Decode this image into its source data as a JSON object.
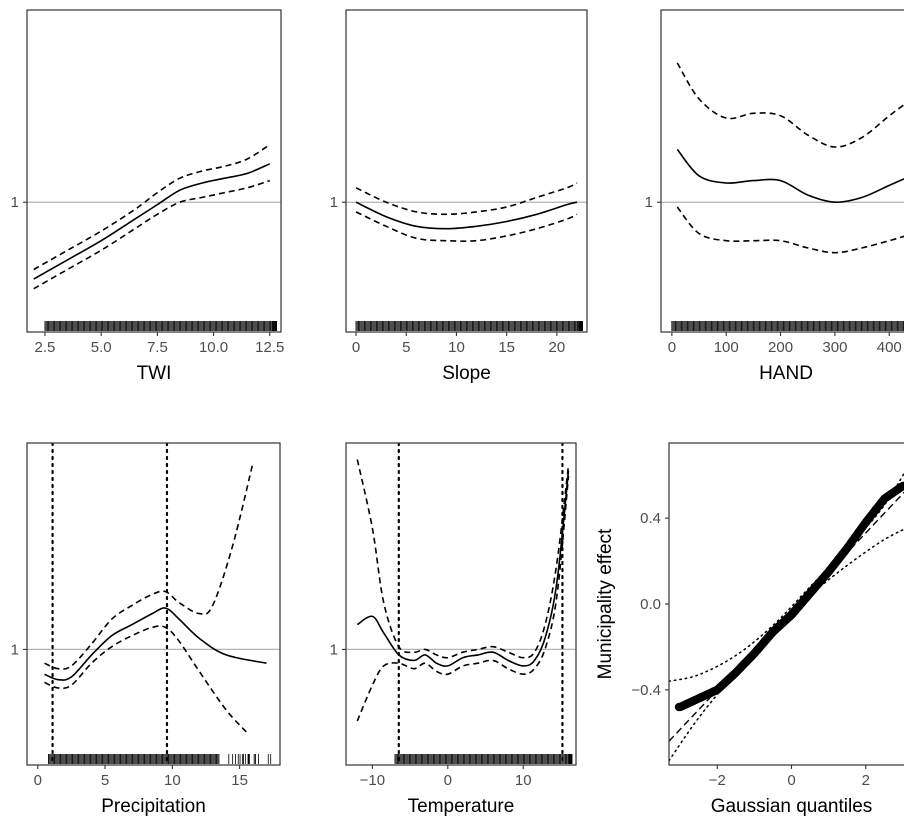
{
  "chart_data": [
    {
      "type": "line",
      "xlabel": "TWI",
      "xlim": [
        1.7,
        13.0
      ],
      "ylim": [
        0.46,
        1.8
      ],
      "xticks": [
        2.5,
        5.0,
        7.5,
        10.0,
        12.5
      ],
      "xticklabels": [
        "2.5",
        "5.0",
        "7.5",
        "10.0",
        "12.5"
      ],
      "yticks": [
        1
      ],
      "yticklabels": [
        "1"
      ],
      "hline": 1,
      "rug": [
        2.5,
        12.6
      ],
      "series": [
        {
          "style": "solid",
          "x": [
            2.0,
            3.5,
            5.0,
            6.5,
            7.5,
            8.5,
            9.5,
            10.5,
            11.5,
            12.5
          ],
          "y": [
            0.68,
            0.76,
            0.84,
            0.93,
            0.99,
            1.05,
            1.08,
            1.1,
            1.12,
            1.16
          ]
        },
        {
          "style": "dashed",
          "x": [
            2.0,
            3.5,
            5.0,
            6.5,
            7.5,
            8.5,
            9.5,
            10.5,
            11.5,
            12.5
          ],
          "y": [
            0.72,
            0.8,
            0.88,
            0.97,
            1.04,
            1.1,
            1.13,
            1.15,
            1.18,
            1.24
          ]
        },
        {
          "style": "dashed",
          "x": [
            2.0,
            3.5,
            5.0,
            6.5,
            7.5,
            8.5,
            9.5,
            10.5,
            11.5,
            12.5
          ],
          "y": [
            0.64,
            0.72,
            0.8,
            0.89,
            0.95,
            1.0,
            1.02,
            1.04,
            1.06,
            1.09
          ]
        }
      ]
    },
    {
      "type": "line",
      "xlabel": "Slope",
      "xlim": [
        -1.0,
        23.0
      ],
      "ylim": [
        0.46,
        1.8
      ],
      "xticks": [
        0,
        5,
        10,
        15,
        20
      ],
      "xticklabels": [
        "0",
        "5",
        "10",
        "15",
        "20"
      ],
      "yticks": [
        1
      ],
      "yticklabels": [
        "1"
      ],
      "hline": 1,
      "rug": [
        0,
        22
      ],
      "series": [
        {
          "style": "solid",
          "x": [
            0,
            3,
            6,
            9,
            12,
            15,
            18,
            21,
            22
          ],
          "y": [
            1.0,
            0.94,
            0.9,
            0.89,
            0.9,
            0.92,
            0.95,
            0.99,
            1.0
          ]
        },
        {
          "style": "dashed",
          "x": [
            0,
            3,
            6,
            9,
            12,
            15,
            18,
            21,
            22
          ],
          "y": [
            1.06,
            1.0,
            0.96,
            0.95,
            0.96,
            0.98,
            1.02,
            1.06,
            1.08
          ]
        },
        {
          "style": "dashed",
          "x": [
            0,
            3,
            6,
            9,
            12,
            15,
            18,
            21,
            22
          ],
          "y": [
            0.96,
            0.9,
            0.85,
            0.84,
            0.84,
            0.86,
            0.89,
            0.93,
            0.95
          ]
        }
      ]
    },
    {
      "type": "line",
      "xlabel": "HAND",
      "xlim": [
        -20,
        440
      ],
      "ylim": [
        0.46,
        1.8
      ],
      "xticks": [
        0,
        100,
        200,
        300,
        400
      ],
      "xticklabels": [
        "0",
        "100",
        "200",
        "300",
        "400"
      ],
      "yticks": [
        1
      ],
      "yticklabels": [
        "1"
      ],
      "hline": 1,
      "rug": [
        0,
        430
      ],
      "series": [
        {
          "style": "solid",
          "x": [
            10,
            50,
            100,
            150,
            200,
            250,
            300,
            350,
            400,
            430
          ],
          "y": [
            1.22,
            1.11,
            1.08,
            1.09,
            1.09,
            1.03,
            1.0,
            1.02,
            1.07,
            1.1
          ]
        },
        {
          "style": "dashed",
          "x": [
            10,
            50,
            100,
            150,
            200,
            250,
            300,
            350,
            400,
            430
          ],
          "y": [
            1.58,
            1.43,
            1.35,
            1.37,
            1.36,
            1.28,
            1.23,
            1.27,
            1.36,
            1.41
          ]
        },
        {
          "style": "dashed",
          "x": [
            10,
            50,
            100,
            150,
            200,
            250,
            300,
            350,
            400,
            430
          ],
          "y": [
            0.98,
            0.87,
            0.84,
            0.84,
            0.84,
            0.81,
            0.79,
            0.81,
            0.84,
            0.86
          ]
        }
      ]
    },
    {
      "type": "line",
      "xlabel": "Precipitation",
      "xlim": [
        -0.8,
        18.0
      ],
      "ylim": [
        0.58,
        1.75
      ],
      "xticks": [
        0,
        5,
        10,
        15
      ],
      "xticklabels": [
        "0",
        "5",
        "10",
        "15"
      ],
      "yticks": [
        1
      ],
      "yticklabels": [
        "1"
      ],
      "hline": 1,
      "vlines": [
        1.1,
        9.6
      ],
      "rug": [
        0.8,
        13.5
      ],
      "series": [
        {
          "style": "solid",
          "x": [
            0.5,
            1.5,
            2.5,
            4.0,
            5.5,
            7.0,
            8.5,
            9.5,
            10.5,
            12.0,
            14.0,
            17.0
          ],
          "y": [
            0.91,
            0.89,
            0.9,
            0.98,
            1.05,
            1.09,
            1.13,
            1.15,
            1.11,
            1.04,
            0.98,
            0.95
          ]
        },
        {
          "style": "dashed",
          "x": [
            0.5,
            1.5,
            2.5,
            4.0,
            5.5,
            7.0,
            8.5,
            9.5,
            10.5,
            12.0,
            13.0,
            14.5,
            16.0
          ],
          "y": [
            0.95,
            0.93,
            0.94,
            1.02,
            1.11,
            1.16,
            1.2,
            1.21,
            1.17,
            1.13,
            1.16,
            1.38,
            1.68
          ]
        },
        {
          "style": "dashed",
          "x": [
            0.5,
            1.5,
            2.5,
            4.0,
            5.5,
            7.0,
            8.5,
            9.5,
            10.5,
            12.0,
            14.0,
            15.5
          ],
          "y": [
            0.88,
            0.86,
            0.87,
            0.95,
            1.01,
            1.05,
            1.08,
            1.08,
            1.03,
            0.92,
            0.78,
            0.7
          ]
        }
      ]
    },
    {
      "type": "line",
      "xlabel": "Temperature",
      "xlim": [
        -13.5,
        17.0
      ],
      "ylim": [
        0.58,
        1.75
      ],
      "xticks": [
        -10,
        0,
        10
      ],
      "xticklabels": [
        "−10",
        "0",
        "10"
      ],
      "yticks": [
        1
      ],
      "yticklabels": [
        "1"
      ],
      "hline": 1,
      "vlines": [
        -6.5,
        15.2
      ],
      "rug": [
        -7,
        16
      ],
      "series": [
        {
          "style": "solid",
          "x": [
            -12,
            -10,
            -8.5,
            -6.5,
            -4.5,
            -3,
            -1.5,
            0,
            2,
            4,
            6,
            8,
            10,
            11.5,
            13,
            14.5,
            16
          ],
          "y": [
            1.09,
            1.12,
            1.06,
            0.98,
            0.96,
            0.98,
            0.95,
            0.94,
            0.97,
            0.98,
            0.99,
            0.96,
            0.94,
            0.96,
            1.05,
            1.25,
            1.65
          ]
        },
        {
          "style": "dashed",
          "x": [
            -12,
            -10,
            -8.5,
            -6.5,
            -4.5,
            -3,
            -1.5,
            0,
            2,
            4,
            6,
            8,
            10,
            11.5,
            13,
            14.5,
            16
          ],
          "y": [
            1.69,
            1.44,
            1.17,
            1.01,
            0.99,
            1.0,
            0.98,
            0.97,
            0.99,
            1.0,
            1.01,
            0.99,
            0.97,
            0.99,
            1.1,
            1.32,
            1.67
          ]
        },
        {
          "style": "dashed",
          "x": [
            -12,
            -10,
            -8.5,
            -6.5,
            -4.5,
            -3,
            -1.5,
            0,
            2,
            4,
            6,
            8,
            10,
            11.5,
            13,
            14.5,
            16
          ],
          "y": [
            0.74,
            0.87,
            0.94,
            0.95,
            0.93,
            0.95,
            0.92,
            0.91,
            0.94,
            0.95,
            0.96,
            0.93,
            0.91,
            0.93,
            1.01,
            1.2,
            1.63
          ]
        }
      ]
    },
    {
      "type": "scatter",
      "xlabel": "Gaussian quantiles",
      "ylabel": "Municipality effect",
      "xlim": [
        -3.3,
        3.3
      ],
      "ylim": [
        -0.75,
        0.75
      ],
      "xticks": [
        -2,
        0,
        2
      ],
      "xticklabels": [
        "−2",
        "0",
        "2"
      ],
      "yticks": [
        -0.4,
        0.0,
        0.4
      ],
      "yticklabels": [
        "−0.4",
        "0.0",
        "0.4"
      ],
      "reference_line": {
        "slope": 0.183,
        "intercept": -0.035
      },
      "envelope_upper": {
        "x": [
          -3.3,
          -2.5,
          -1.5,
          -0.5,
          0.5,
          1.5,
          2.5,
          3.3
        ],
        "y": [
          -0.36,
          -0.33,
          -0.24,
          -0.1,
          0.08,
          0.26,
          0.46,
          0.69
        ]
      },
      "envelope_lower": {
        "x": [
          -3.3,
          -2.5,
          -1.5,
          -0.5,
          0.5,
          1.5,
          2.5,
          3.3
        ],
        "y": [
          -0.73,
          -0.53,
          -0.32,
          -0.13,
          0.04,
          0.18,
          0.3,
          0.37
        ]
      },
      "points": {
        "n": 260,
        "x_range": [
          -3.05,
          3.1
        ],
        "curve_x": [
          -3.0,
          -2.0,
          -1.5,
          -1.0,
          -0.5,
          0.0,
          0.5,
          1.0,
          1.5,
          2.0,
          2.5,
          3.0
        ],
        "curve_y": [
          -0.48,
          -0.4,
          -0.32,
          -0.23,
          -0.13,
          -0.05,
          0.05,
          0.15,
          0.26,
          0.38,
          0.49,
          0.55
        ]
      }
    }
  ]
}
